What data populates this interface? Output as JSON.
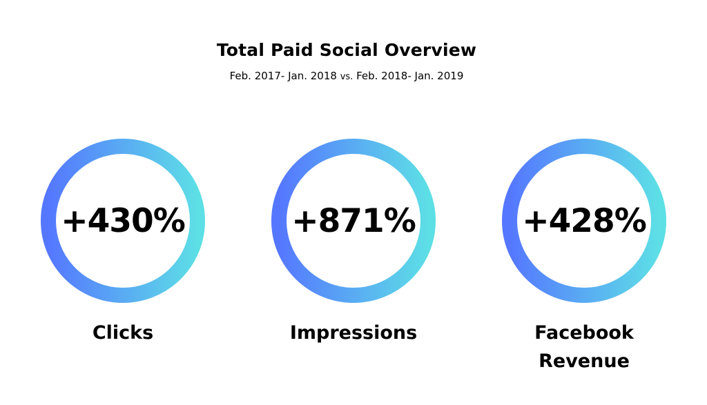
{
  "header": {
    "title": "Total Paid Social Overview",
    "subtitle_part1": "Feb. 2017- Jan. 2018",
    "subtitle_vs": "vs.",
    "subtitle_part2": "Feb. 2018- Jan. 2019"
  },
  "metrics": [
    {
      "value": "+430%",
      "label_line1": "Clicks",
      "label_line2": ""
    },
    {
      "value": "+871%",
      "label_line1": "Impressions",
      "label_line2": ""
    },
    {
      "value": "+428%",
      "label_line1": "Facebook",
      "label_line2": "Revenue"
    }
  ],
  "colors": {
    "ring_start": "#5577ff",
    "ring_end": "#5ddfe6",
    "text": "#000000",
    "background": "#ffffff"
  }
}
